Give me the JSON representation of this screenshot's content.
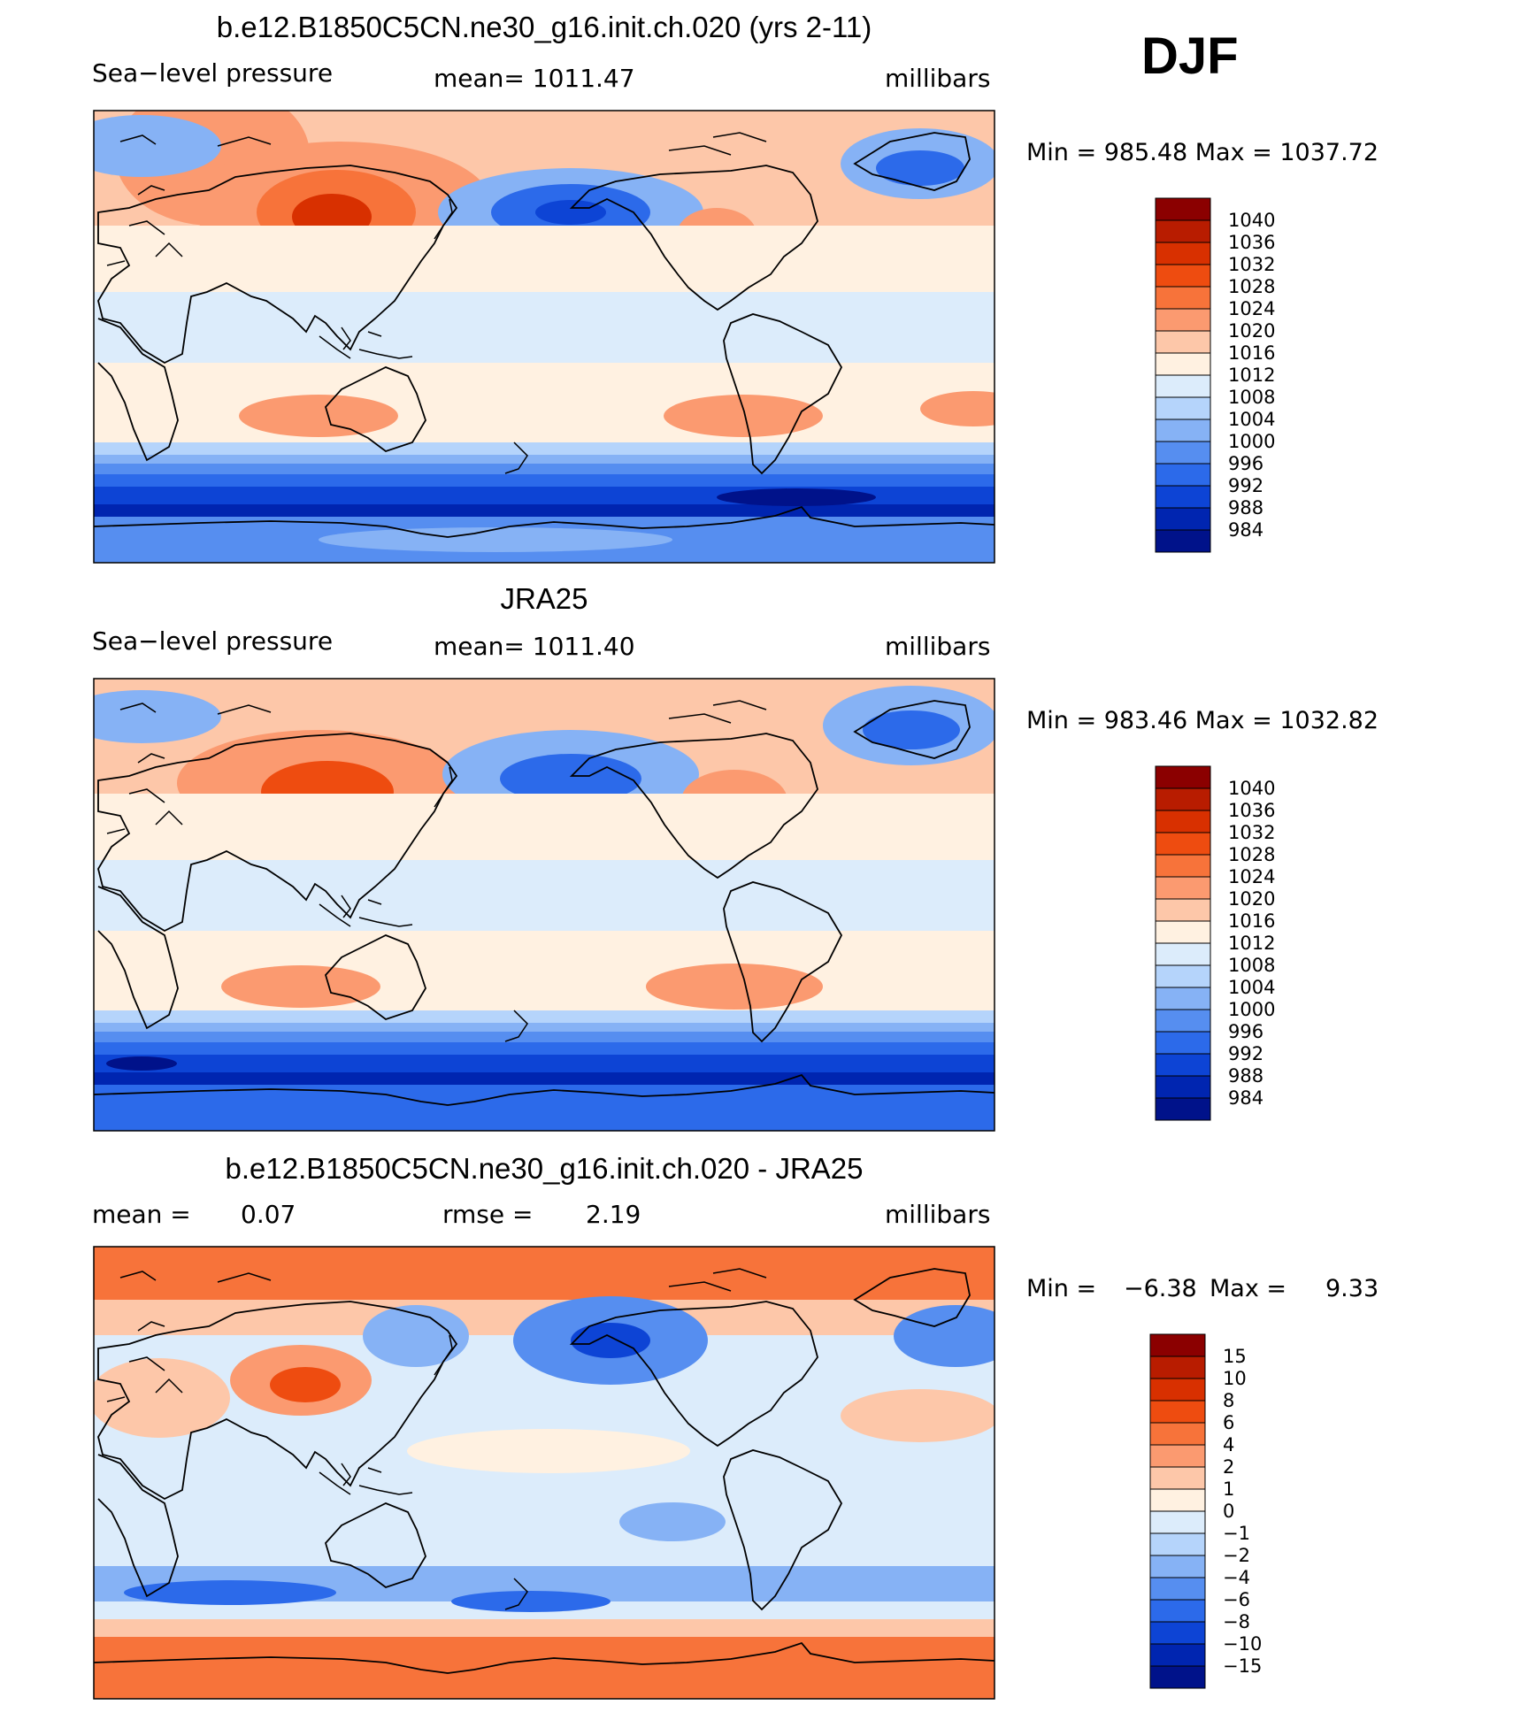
{
  "season": "DJF",
  "panels": [
    {
      "title": "b.e12.B1850C5CN.ne30_g16.init.ch.020 (yrs 2-11)",
      "left_label": "Sea−level pressure",
      "center_label": "mean=  1011.47",
      "right_label": "millibars",
      "stats": "Min  =  985.48  Max  =  1037.72"
    },
    {
      "title": "JRA25",
      "left_label": "Sea−level pressure",
      "center_label": "mean=  1011.40",
      "right_label": "millibars",
      "stats": "Min  =  983.46  Max  =  1032.82"
    },
    {
      "title": "b.e12.B1850C5CN.ne30_g16.init.ch.020 - JRA25",
      "left_label": "mean  =",
      "left_value": "0.07",
      "center_label": "rmse  =",
      "center_value": "2.19",
      "right_label": "millibars",
      "stats_prefix": "Min  =",
      "stats_min": "−6.38",
      "stats_mid": "Max  =",
      "stats_max": "9.33"
    }
  ],
  "colorbars": {
    "slp_labels": [
      "1040",
      "1036",
      "1032",
      "1028",
      "1024",
      "1020",
      "1016",
      "1012",
      "1008",
      "1004",
      "1000",
      "996",
      "992",
      "988",
      "984"
    ],
    "diff_labels": [
      "15",
      "10",
      "8",
      "6",
      "4",
      "2",
      "1",
      "0",
      "−1",
      "−2",
      "−4",
      "−6",
      "−8",
      "−10",
      "−15"
    ],
    "colors": [
      "#8b0000",
      "#b81c00",
      "#d83000",
      "#ee4c10",
      "#f7733a",
      "#fb9a70",
      "#fdc7a9",
      "#fff1e1",
      "#dcecfb",
      "#b5d4fb",
      "#86b2f5",
      "#568ef0",
      "#2c6aea",
      "#0d44d5",
      "#0025b0",
      "#00128a"
    ]
  },
  "chart_data": [
    {
      "type": "heatmap",
      "title": "b.e12.B1850C5CN.ne30_g16.init.ch.020 (yrs 2-11)",
      "variable": "Sea-level pressure",
      "units": "millibars",
      "mean": 1011.47,
      "min": 985.48,
      "max": 1037.72,
      "contour_levels": [
        984,
        988,
        992,
        996,
        1000,
        1004,
        1008,
        1012,
        1016,
        1020,
        1024,
        1028,
        1032,
        1036,
        1040
      ],
      "map": "global, 0E-360E centered on Pacific"
    },
    {
      "type": "heatmap",
      "title": "JRA25",
      "variable": "Sea-level pressure",
      "units": "millibars",
      "mean": 1011.4,
      "min": 983.46,
      "max": 1032.82,
      "contour_levels": [
        984,
        988,
        992,
        996,
        1000,
        1004,
        1008,
        1012,
        1016,
        1020,
        1024,
        1028,
        1032,
        1036,
        1040
      ]
    },
    {
      "type": "heatmap",
      "title": "b.e12.B1850C5CN.ne30_g16.init.ch.020 - JRA25",
      "units": "millibars",
      "mean": 0.07,
      "rmse": 2.19,
      "min": -6.38,
      "max": 9.33,
      "contour_levels": [
        -15,
        -10,
        -8,
        -6,
        -4,
        -2,
        -1,
        0,
        1,
        2,
        4,
        6,
        8,
        10,
        15
      ]
    }
  ]
}
